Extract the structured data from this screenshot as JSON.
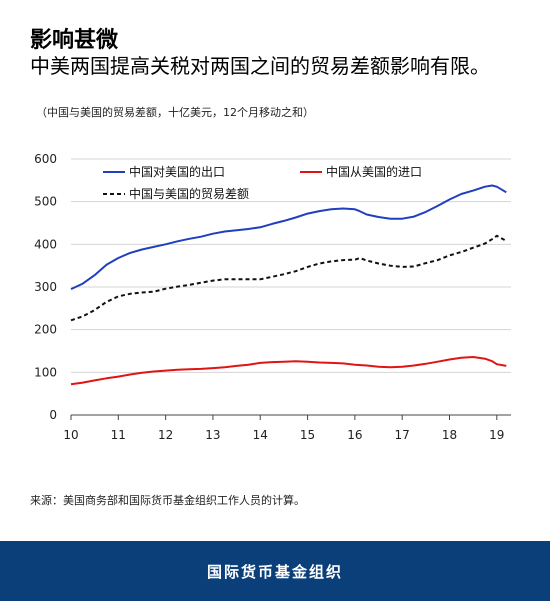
{
  "header": {
    "title": "影响甚微",
    "subtitle": "中美两国提高关税对两国之间的贸易差额影响有限。",
    "note": "（中国与美国的贸易差额，十亿美元，12个月移动之和）"
  },
  "source": "来源：美国商务部和国际货币基金组织工作人员的计算。",
  "footer": {
    "org_name": "国际货币基金组织"
  },
  "chart_data": {
    "type": "line",
    "xlim": [
      10,
      19.3
    ],
    "ylim": [
      0,
      600
    ],
    "x_ticks": [
      10,
      11,
      12,
      13,
      14,
      15,
      16,
      17,
      18,
      19
    ],
    "y_ticks": [
      0,
      100,
      200,
      300,
      400,
      500,
      600
    ],
    "legend_position": "top",
    "series": [
      {
        "name": "中国对美国的出口",
        "color": "#1f3fbf",
        "style": "solid",
        "x": [
          10.0,
          10.25,
          10.5,
          10.75,
          11.0,
          11.25,
          11.5,
          11.75,
          12.0,
          12.25,
          12.5,
          12.75,
          13.0,
          13.25,
          13.5,
          13.75,
          14.0,
          14.25,
          14.5,
          14.75,
          15.0,
          15.25,
          15.5,
          15.75,
          16.0,
          16.1,
          16.25,
          16.5,
          16.75,
          17.0,
          17.25,
          17.5,
          17.75,
          18.0,
          18.25,
          18.5,
          18.75,
          18.9,
          19.0,
          19.2
        ],
        "y": [
          295,
          308,
          328,
          352,
          368,
          380,
          388,
          394,
          400,
          407,
          413,
          418,
          425,
          430,
          433,
          436,
          440,
          448,
          455,
          463,
          472,
          478,
          482,
          484,
          482,
          478,
          470,
          464,
          460,
          460,
          465,
          476,
          490,
          505,
          518,
          526,
          535,
          538,
          535,
          522
        ]
      },
      {
        "name": "中国从美国的进口",
        "color": "#e01414",
        "style": "solid",
        "x": [
          10.0,
          10.25,
          10.5,
          10.75,
          11.0,
          11.25,
          11.5,
          11.75,
          12.0,
          12.25,
          12.5,
          12.75,
          13.0,
          13.25,
          13.5,
          13.75,
          14.0,
          14.25,
          14.5,
          14.75,
          15.0,
          15.25,
          15.5,
          15.75,
          16.0,
          16.25,
          16.5,
          16.75,
          17.0,
          17.25,
          17.5,
          17.75,
          18.0,
          18.25,
          18.5,
          18.75,
          18.9,
          19.0,
          19.2
        ],
        "y": [
          72,
          76,
          81,
          86,
          90,
          95,
          99,
          102,
          104,
          106,
          107,
          108,
          110,
          112,
          115,
          118,
          122,
          124,
          125,
          126,
          125,
          123,
          122,
          121,
          118,
          116,
          113,
          112,
          113,
          116,
          120,
          125,
          130,
          134,
          136,
          132,
          126,
          119,
          115
        ]
      },
      {
        "name": "中国与美国的贸易差额",
        "color": "#111111",
        "style": "dashed",
        "x": [
          10.0,
          10.25,
          10.5,
          10.75,
          11.0,
          11.25,
          11.5,
          11.75,
          12.0,
          12.25,
          12.5,
          12.75,
          13.0,
          13.25,
          13.5,
          13.75,
          14.0,
          14.25,
          14.5,
          14.75,
          15.0,
          15.25,
          15.5,
          15.75,
          16.0,
          16.1,
          16.25,
          16.5,
          16.75,
          17.0,
          17.25,
          17.5,
          17.75,
          18.0,
          18.25,
          18.5,
          18.75,
          18.9,
          19.0,
          19.2
        ],
        "y": [
          222,
          231,
          246,
          265,
          278,
          284,
          287,
          289,
          296,
          301,
          305,
          310,
          315,
          318,
          318,
          318,
          318,
          324,
          330,
          337,
          347,
          355,
          360,
          363,
          364,
          368,
          362,
          355,
          350,
          347,
          348,
          356,
          363,
          374,
          382,
          392,
          402,
          412,
          420,
          408
        ]
      }
    ]
  }
}
